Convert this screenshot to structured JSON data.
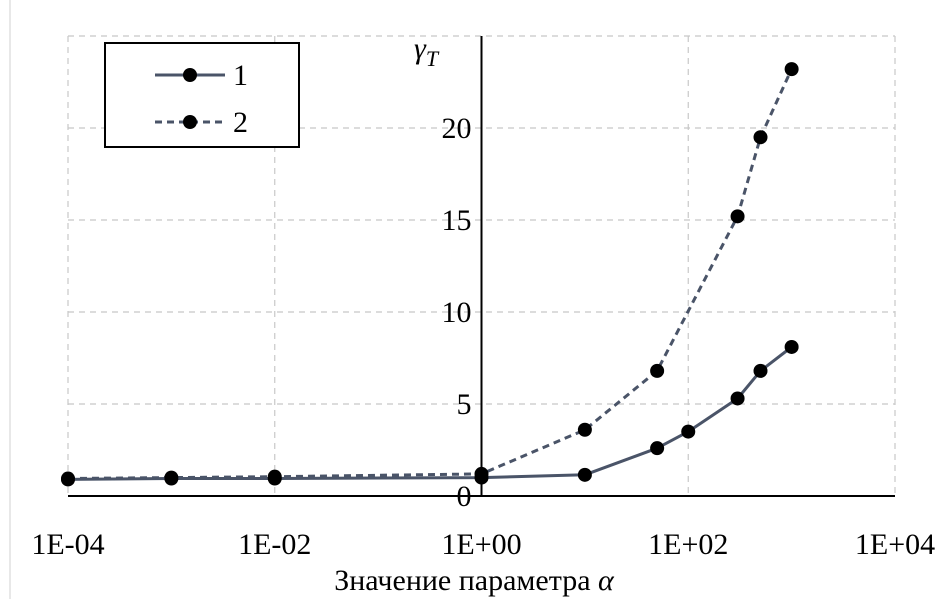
{
  "chart_data": {
    "type": "line",
    "title": "",
    "xlabel_text": "Значение параметра",
    "xlabel_symbol": "α",
    "ylabel_symbol": "γ",
    "ylabel_subscript": "T",
    "x_scale": "log10",
    "xlim": [
      0.0001,
      10000
    ],
    "ylim": [
      0,
      25
    ],
    "x_ticks": [
      {
        "value": 0.0001,
        "label": "1E-04"
      },
      {
        "value": 0.01,
        "label": "1E-02"
      },
      {
        "value": 1,
        "label": "1E+00"
      },
      {
        "value": 100,
        "label": "1E+02"
      },
      {
        "value": 10000,
        "label": "1E+04"
      }
    ],
    "y_ticks": [
      {
        "value": 0,
        "label": "0"
      },
      {
        "value": 5,
        "label": "5"
      },
      {
        "value": 10,
        "label": "10"
      },
      {
        "value": 15,
        "label": "15"
      },
      {
        "value": 20,
        "label": "20"
      }
    ],
    "grid": true,
    "grid_style": "dashed",
    "legend_position": "top-left",
    "series": [
      {
        "name": "1",
        "line_style": "solid",
        "color": "#4a5468",
        "marker_color": "#000000",
        "points": [
          {
            "x": 0.0001,
            "y": 0.9
          },
          {
            "x": 0.001,
            "y": 0.95
          },
          {
            "x": 0.01,
            "y": 0.95
          },
          {
            "x": 1,
            "y": 1.0
          },
          {
            "x": 10,
            "y": 1.15
          },
          {
            "x": 50,
            "y": 2.6
          },
          {
            "x": 100,
            "y": 3.5
          },
          {
            "x": 300,
            "y": 5.3
          },
          {
            "x": 500,
            "y": 6.8
          },
          {
            "x": 1000,
            "y": 8.1
          }
        ]
      },
      {
        "name": "2",
        "line_style": "dashed",
        "color": "#4a5468",
        "marker_color": "#000000",
        "points": [
          {
            "x": 0.0001,
            "y": 0.95
          },
          {
            "x": 0.001,
            "y": 1.0
          },
          {
            "x": 0.01,
            "y": 1.05
          },
          {
            "x": 1,
            "y": 1.2
          },
          {
            "x": 10,
            "y": 3.6
          },
          {
            "x": 50,
            "y": 6.8
          },
          {
            "x": 300,
            "y": 15.2
          },
          {
            "x": 500,
            "y": 19.5
          },
          {
            "x": 1000,
            "y": 23.2
          }
        ]
      }
    ]
  }
}
